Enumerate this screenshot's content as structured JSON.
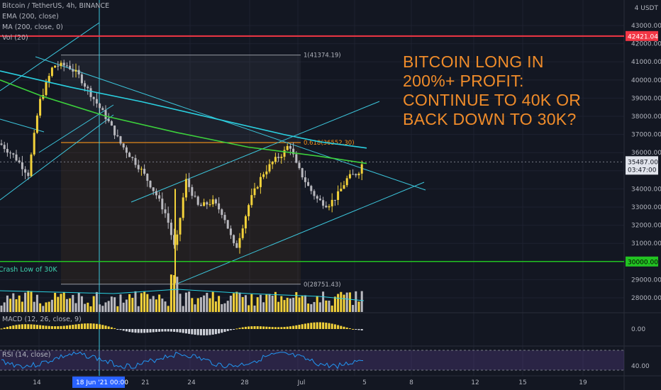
{
  "legend": {
    "symbol": "Bitcoin / TetherUS, 4h, BINANCE",
    "ema": "EMA (200, close)",
    "ma": "MA (200, close, 0)",
    "vol": "Vol (20)",
    "macd": "MACD (12, 26, close, 9)",
    "rsi": "RSI (14, close)"
  },
  "headline_lines": [
    "BITCOIN LONG IN",
    "200%+ PROFIT:",
    "CONTINUE TO 40K OR",
    "BACK DOWN TO 30K?"
  ],
  "annotations": {
    "crash_low": "Crash Low of 30K",
    "fib_top": "1(41374.19)",
    "fib_618": "0.618(36552.30)",
    "fib_bottom": "0(28751.43)"
  },
  "axis": {
    "currency": "USDT",
    "currency_prefix": "4",
    "price_ticks": [
      "43000.00",
      "42000.00",
      "41000.00",
      "40000.00",
      "39000.00",
      "38000.00",
      "37000.00",
      "36000.00",
      "34000.00",
      "33000.00",
      "32000.00",
      "31000.00",
      "29000.00",
      "28000.00"
    ],
    "date_ticks": [
      "14",
      "21",
      "24",
      "28",
      "Jul",
      "5",
      "8",
      "12",
      "15",
      "19"
    ],
    "crosshair_date": "18 Jun '21   00:00",
    "macd_tick": "0.00",
    "rsi_tick": "40.00"
  },
  "price_badges": {
    "resistance": "42421.04",
    "current": "35487.00",
    "countdown": "03:47:00",
    "support": "30000.00"
  },
  "colors": {
    "background": "#131722",
    "resistance_line": "#f23645",
    "support_line": "#22c322",
    "ema": "#2ad0e0",
    "ma": "#3cd03c",
    "fib": "#f7931a",
    "trendline": "#3cc6dc",
    "bull_candle": "#f3d23a",
    "bear_candle": "#b9b9bf",
    "headline": "#f08c2a"
  },
  "chart_data": {
    "type": "candlestick",
    "symbol": "Bitcoin / TetherUS",
    "timeframe": "4h",
    "ylim": [
      28000,
      43500
    ],
    "levels": {
      "resistance": 42421.04,
      "support": 30000.0,
      "current": 35487.0
    },
    "fibonacci": {
      "1": 41374.19,
      "0.618": 36552.3,
      "0": 28751.43
    },
    "series": [
      {
        "name": "EMA (200, close)",
        "points": [
          [
            0,
            40500
          ],
          [
            100,
            39600
          ],
          [
            200,
            38800
          ],
          [
            300,
            37900
          ],
          [
            400,
            37000
          ],
          [
            450,
            36600
          ],
          [
            517,
            36250
          ]
        ]
      },
      {
        "name": "MA (200, close, 0)",
        "points": [
          [
            0,
            40000
          ],
          [
            60,
            39100
          ],
          [
            150,
            38000
          ],
          [
            250,
            37100
          ],
          [
            350,
            36300
          ],
          [
            450,
            35800
          ],
          [
            517,
            35400
          ]
        ]
      }
    ],
    "price_path": [
      [
        0,
        36500
      ],
      [
        20,
        35800
      ],
      [
        40,
        34800
      ],
      [
        55,
        38700
      ],
      [
        75,
        40800
      ],
      [
        95,
        40800
      ],
      [
        110,
        40300
      ],
      [
        130,
        39100
      ],
      [
        150,
        37900
      ],
      [
        170,
        36500
      ],
      [
        200,
        35000
      ],
      [
        220,
        33700
      ],
      [
        235,
        32500
      ],
      [
        247,
        30600
      ],
      [
        262,
        34500
      ],
      [
        280,
        33000
      ],
      [
        300,
        33300
      ],
      [
        315,
        32600
      ],
      [
        332,
        30600
      ],
      [
        352,
        33300
      ],
      [
        370,
        34800
      ],
      [
        385,
        35500
      ],
      [
        400,
        36000
      ],
      [
        408,
        36500
      ],
      [
        418,
        35300
      ],
      [
        435,
        34100
      ],
      [
        448,
        33400
      ],
      [
        462,
        33100
      ],
      [
        475,
        33600
      ],
      [
        490,
        34600
      ],
      [
        505,
        34900
      ],
      [
        512,
        35500
      ]
    ],
    "crash_low_x": 247
  }
}
